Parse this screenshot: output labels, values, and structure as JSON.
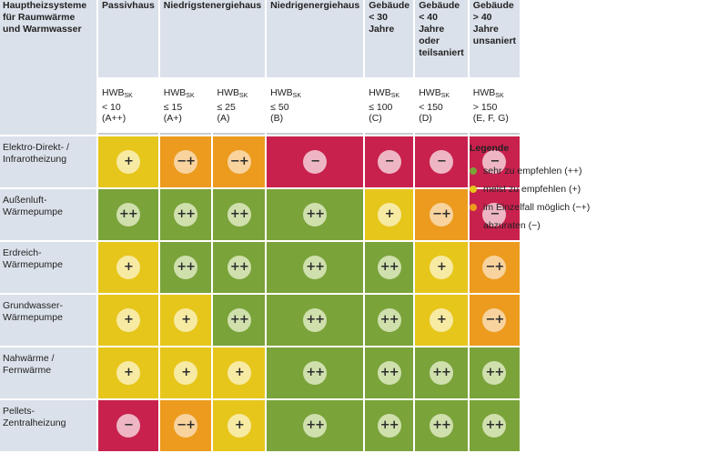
{
  "header": {
    "corner": "Hauptheizsysteme für Raumwärme und Warmwasser",
    "columns": [
      {
        "title": "Passivhaus",
        "hwb_label": "HWB",
        "hwb_sub": "SK",
        "range": "< 10",
        "class": "(A++)"
      },
      {
        "title": "Niedrigstenergiehaus",
        "hwb_label": "HWB",
        "hwb_sub": "SK",
        "range": "≤ 15",
        "class": "(A+)"
      },
      {
        "title": "",
        "hwb_label": "HWB",
        "hwb_sub": "SK",
        "range": "≤ 25",
        "class": "(A)"
      },
      {
        "title": "Niedrigenergiehaus",
        "hwb_label": "HWB",
        "hwb_sub": "SK",
        "range": "≤ 50",
        "class": "(B)"
      },
      {
        "title": "Gebäude < 30 Jahre",
        "hwb_label": "HWB",
        "hwb_sub": "SK",
        "range": "≤ 100",
        "class": "(C)"
      },
      {
        "title": "Gebäude < 40 Jahre oder teilsaniert",
        "hwb_label": "HWB",
        "hwb_sub": "SK",
        "range": "< 150",
        "class": "(D)"
      },
      {
        "title": "Gebäude > 40 Jahre unsaniert",
        "hwb_label": "HWB",
        "hwb_sub": "SK",
        "range": "> 150",
        "class": "(E, F, G)"
      }
    ]
  },
  "rows": [
    {
      "label": "Elektro-Direkt- / Infrarotheizung",
      "ratings": [
        "yellow",
        "orange",
        "orange",
        "red",
        "red",
        "red",
        "red"
      ]
    },
    {
      "label": "Außenluft-Wärmepumpe",
      "ratings": [
        "green",
        "green",
        "green",
        "green",
        "yellow",
        "orange",
        "red"
      ]
    },
    {
      "label": "Erdreich-Wärmepumpe",
      "ratings": [
        "yellow",
        "green",
        "green",
        "green",
        "green",
        "yellow",
        "orange"
      ]
    },
    {
      "label": "Grundwasser-Wärmepumpe",
      "ratings": [
        "yellow",
        "yellow",
        "green",
        "green",
        "green",
        "yellow",
        "orange"
      ]
    },
    {
      "label": "Nahwärme / Fernwärme",
      "ratings": [
        "yellow",
        "yellow",
        "yellow",
        "green",
        "green",
        "green",
        "green"
      ]
    },
    {
      "label": "Pellets-Zentralheizung",
      "ratings": [
        "red",
        "orange",
        "yellow",
        "green",
        "green",
        "green",
        "green"
      ]
    }
  ],
  "symbols": {
    "green": "++",
    "yellow": "+",
    "orange": "−+",
    "red": "−"
  },
  "colors": {
    "green": "#7aa33a",
    "yellow": "#e7c61b",
    "orange": "#ec9b1e",
    "red": "#c8214d",
    "header_bg": "#dbe1ea"
  },
  "legend": {
    "title": "Legende",
    "items": [
      {
        "key": "green",
        "label": "sehr zu empfehlen (++)"
      },
      {
        "key": "yellow",
        "label": "meist zu empfehlen (+)"
      },
      {
        "key": "orange",
        "label": "im Einzelfall möglich (−+)"
      },
      {
        "key": "red",
        "label": "abzuraten (−)"
      }
    ]
  }
}
